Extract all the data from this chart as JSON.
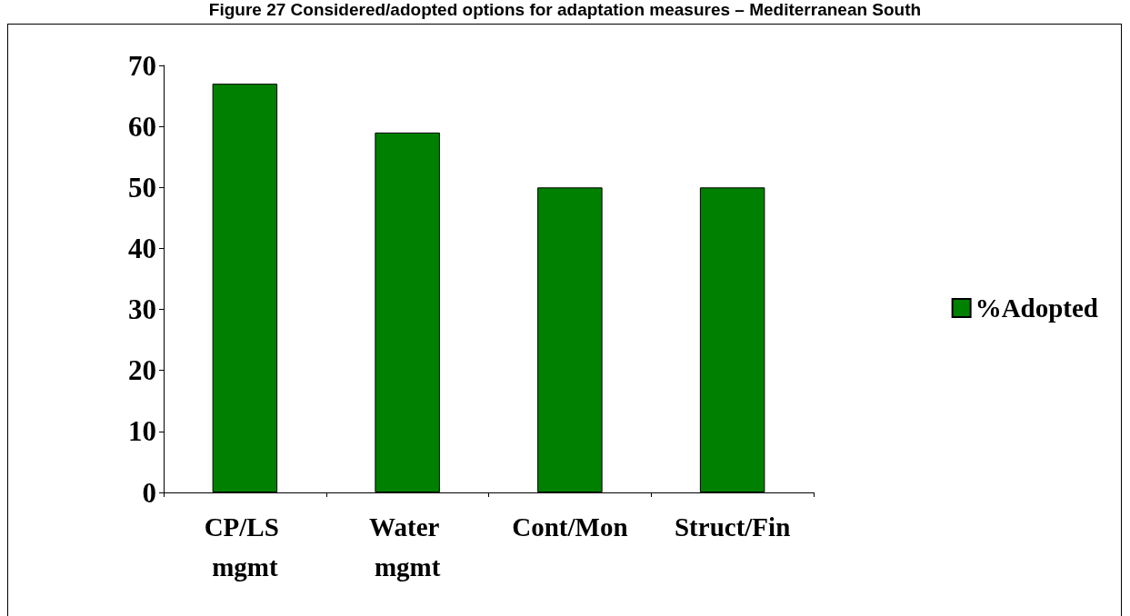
{
  "chart_data": {
    "type": "bar",
    "title": "Figure 27 Considered/adopted options for adaptation measures – Mediterranean South",
    "categories": [
      "CP/LS mgmt",
      "Water mgmt",
      "Cont/Mon",
      "Struct/Fin"
    ],
    "series": [
      {
        "name": "%Adopted",
        "color": "#008000",
        "values": [
          67,
          59,
          50,
          50
        ]
      }
    ],
    "ylim": [
      0,
      70
    ],
    "yticks": [
      0,
      10,
      20,
      30,
      40,
      50,
      60,
      70
    ],
    "grid": false,
    "legend": "right"
  }
}
